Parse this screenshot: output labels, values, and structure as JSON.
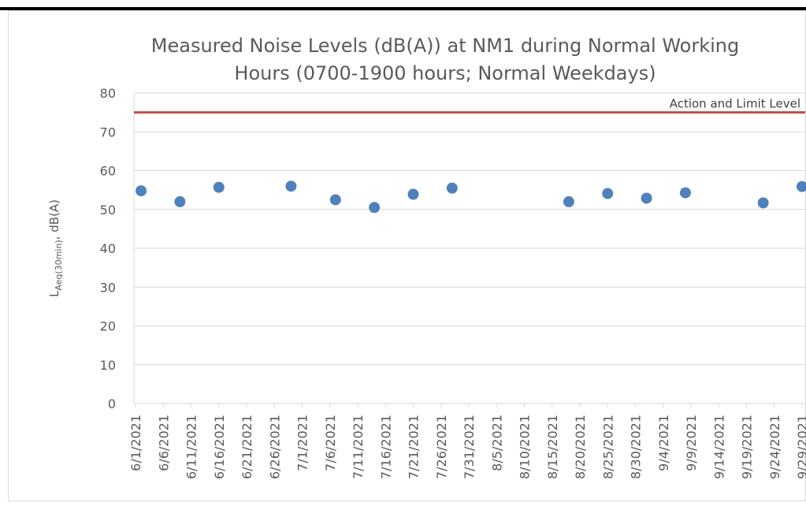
{
  "chart_data": {
    "type": "scatter",
    "title": [
      "Measured Noise Levels (dB(A)) at NM1 during Normal Working",
      "Hours (0700-1900 hours; Normal Weekdays)"
    ],
    "y_label": [
      "L",
      "Aeq(30min)",
      ", dB(A)"
    ],
    "x": [
      "6/2/2021",
      "6/9/2021",
      "6/16/2021",
      "6/29/2021",
      "7/7/2021",
      "7/14/2021",
      "7/21/2021",
      "7/28/2021",
      "8/18/2021",
      "8/25/2021",
      "9/1/2021",
      "9/8/2021",
      "9/22/2021",
      "9/29/2021"
    ],
    "values": [
      54.8,
      52,
      55.7,
      56,
      52.5,
      50.5,
      53.9,
      55.5,
      52,
      54.1,
      52.9,
      54.3,
      51.7,
      55.9
    ],
    "color": "#4f81bd",
    "reference_line": {
      "name": "Action and Limit Level",
      "value": 75,
      "color": "#c0504d"
    },
    "xlim": [
      "6/1/2021",
      "9/29/2021"
    ],
    "xticks": [
      "6/1/2021",
      "6/6/2021",
      "6/11/2021",
      "6/16/2021",
      "6/21/2021",
      "6/26/2021",
      "7/1/2021",
      "7/6/2021",
      "7/11/2021",
      "7/16/2021",
      "7/21/2021",
      "7/26/2021",
      "7/31/2021",
      "8/5/2021",
      "8/10/2021",
      "8/15/2021",
      "8/20/2021",
      "8/25/2021",
      "8/30/2021",
      "9/4/2021",
      "9/9/2021",
      "9/14/2021",
      "9/19/2021",
      "9/24/2021",
      "9/29/2021"
    ],
    "ylim": [
      0,
      80
    ],
    "yticks": [
      0,
      10,
      20,
      30,
      40,
      50,
      60,
      70,
      80
    ],
    "grid": true
  }
}
